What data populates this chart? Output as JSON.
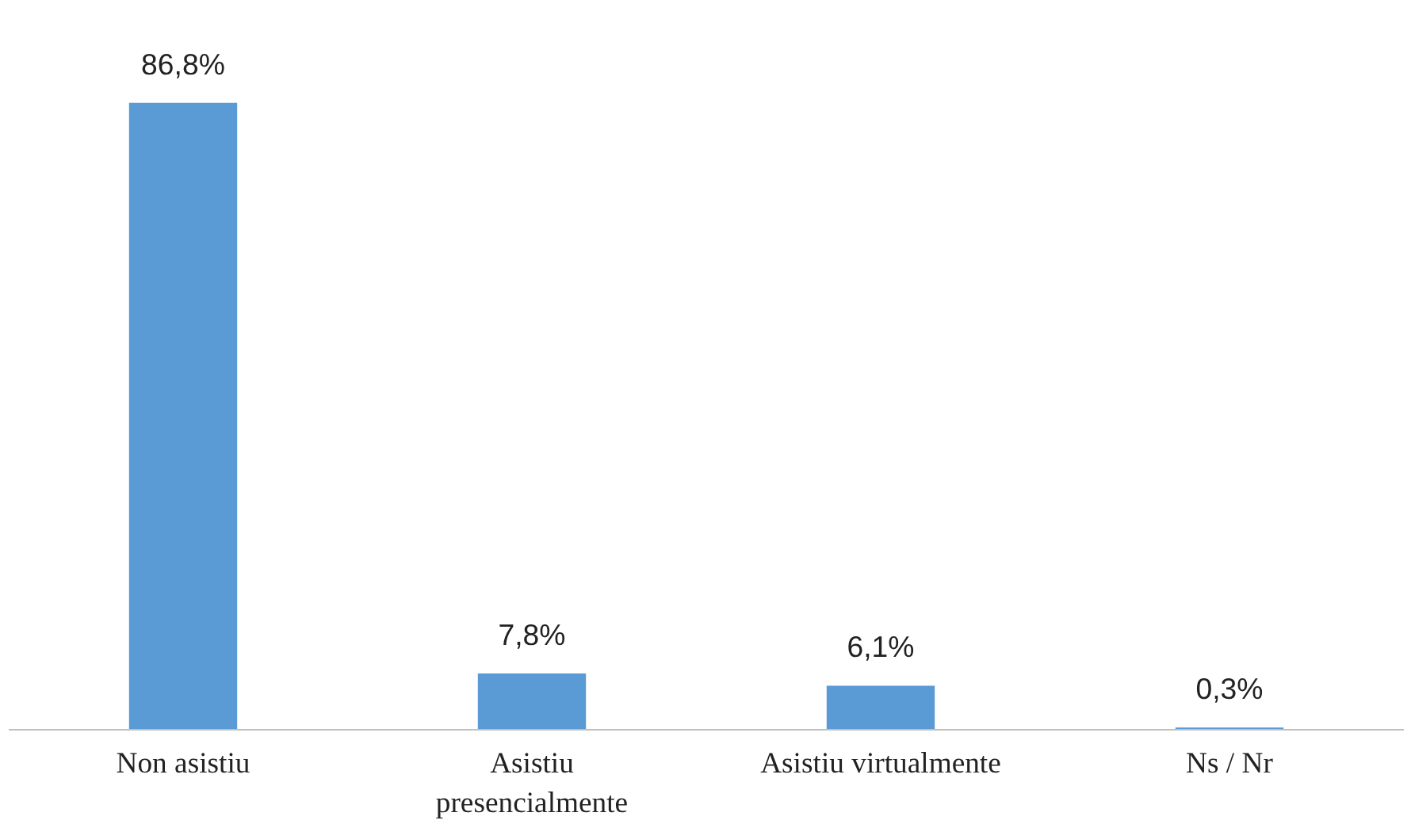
{
  "chart_data": {
    "type": "bar",
    "categories": [
      "Non asistiu",
      "Asistiu presencialmente",
      "Asistiu virtualmente",
      "Ns / Nr"
    ],
    "values": [
      86.8,
      7.8,
      6.1,
      0.3
    ],
    "value_labels": [
      "86,8%",
      "7,8%",
      "6,1%",
      "0,3%"
    ],
    "color": "#5b9bd5",
    "grid": false
  }
}
